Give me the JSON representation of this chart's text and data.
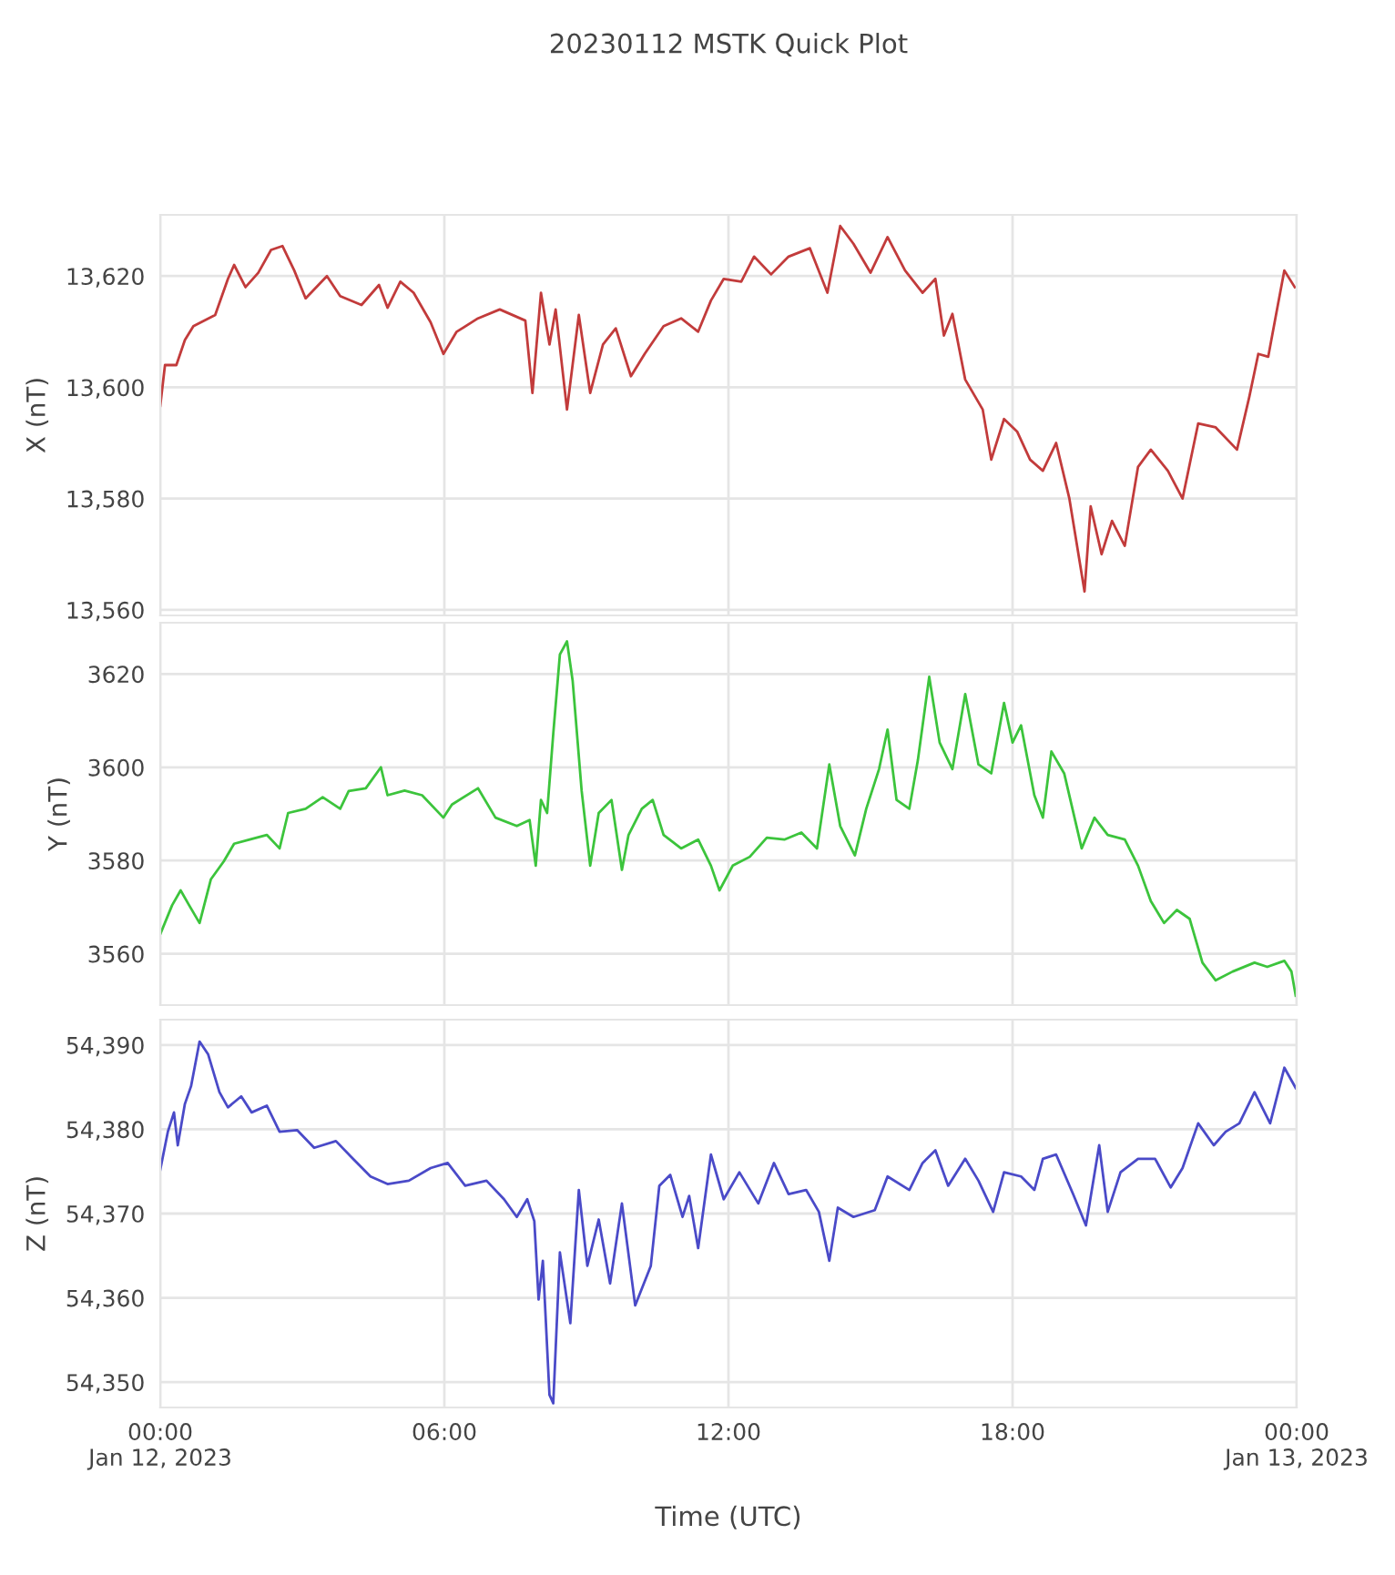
{
  "chart_data": [
    {
      "type": "line",
      "title": "20230112 MSTK Quick Plot",
      "ylabel": "X (nT)",
      "grid": true,
      "tick_labels": "y",
      "xlim": [
        0,
        24
      ],
      "xticks": [
        0,
        6,
        12,
        18,
        24
      ],
      "ylim": [
        13559,
        13631
      ],
      "yticks": [
        {
          "value": 13560,
          "label": "13,560"
        },
        {
          "value": 13580,
          "label": "13,580"
        },
        {
          "value": 13600,
          "label": "13,600"
        },
        {
          "value": 13620,
          "label": "13,620"
        }
      ],
      "x": [
        0,
        0.1,
        0.34,
        0.52,
        0.7,
        1.16,
        1.43,
        1.56,
        1.8,
        2.07,
        2.34,
        2.58,
        2.83,
        3.07,
        3.52,
        3.8,
        4.25,
        4.62,
        4.8,
        5.07,
        5.35,
        5.71,
        5.98,
        6.26,
        6.71,
        7.17,
        7.71,
        7.86,
        8.04,
        8.22,
        8.35,
        8.59,
        8.84,
        9.08,
        9.35,
        9.62,
        9.94,
        10.23,
        10.63,
        11,
        11.36,
        11.63,
        11.9,
        12.27,
        12.54,
        12.9,
        13.27,
        13.72,
        14.09,
        14.36,
        14.64,
        15,
        15.36,
        15.73,
        16.1,
        16.37,
        16.55,
        16.73,
        17,
        17.37,
        17.55,
        17.82,
        18.1,
        18.37,
        18.64,
        18.92,
        19.2,
        19.52,
        19.65,
        19.88,
        20.1,
        20.37,
        20.65,
        20.92,
        21.28,
        21.59,
        21.92,
        22.29,
        22.74,
        23,
        23.19,
        23.4,
        23.55,
        23.74,
        23.96
      ],
      "series": [
        {
          "color": "#c23b3b",
          "values": [
            13596.7,
            13604,
            13604,
            13608.5,
            13611,
            13613,
            13619.5,
            13622,
            13618,
            13620.6,
            13624.7,
            13625.4,
            13621,
            13616,
            13620,
            13616.4,
            13614.8,
            13618.4,
            13614.3,
            13619,
            13617,
            13611.7,
            13606,
            13610,
            13612.4,
            13614,
            13612,
            13599,
            13617,
            13607.7,
            13614,
            13596,
            13613,
            13599,
            13607.7,
            13610.6,
            13602,
            13606,
            13611,
            13612.4,
            13610,
            13615.6,
            13619.5,
            13619,
            13623.5,
            13620.3,
            13623.5,
            13625,
            13617,
            13629,
            13625.8,
            13620.6,
            13627,
            13621,
            13617,
            13619.5,
            13609.3,
            13613.2,
            13601.4,
            13596,
            13587,
            13594.3,
            13592,
            13587,
            13585,
            13590,
            13580,
            13563.3,
            13578.6,
            13570,
            13576,
            13571.5,
            13585.7,
            13588.8,
            13585,
            13580,
            13593.5,
            13592.8,
            13588.8,
            13598.3,
            13606,
            13605.5,
            13612.4,
            13621,
            13618
          ]
        }
      ]
    },
    {
      "type": "line",
      "ylabel": "Y (nT)",
      "grid": true,
      "tick_labels": "y",
      "xlim": [
        0,
        24
      ],
      "xticks": [
        0,
        6,
        12,
        18,
        24
      ],
      "ylim": [
        3549,
        3631
      ],
      "yticks": [
        3560,
        3580,
        3600,
        3620
      ],
      "x": [
        0,
        0.25,
        0.43,
        0.61,
        0.83,
        1.07,
        1.34,
        1.56,
        1.89,
        2.25,
        2.52,
        2.7,
        3.07,
        3.43,
        3.8,
        3.98,
        4.34,
        4.66,
        4.8,
        5.16,
        5.53,
        5.98,
        6.16,
        6.71,
        7.08,
        7.53,
        7.8,
        7.93,
        8.04,
        8.17,
        8.3,
        8.44,
        8.59,
        8.71,
        8.9,
        9.08,
        9.26,
        9.53,
        9.75,
        9.89,
        10.17,
        10.4,
        10.63,
        11,
        11.36,
        11.63,
        11.81,
        12.09,
        12.45,
        12.81,
        13.18,
        13.54,
        13.87,
        14.13,
        14.36,
        14.67,
        14.91,
        15.18,
        15.36,
        15.55,
        15.82,
        16,
        16.24,
        16.46,
        16.73,
        17,
        17.28,
        17.55,
        17.82,
        18,
        18.18,
        18.46,
        18.64,
        18.82,
        19.09,
        19.46,
        19.73,
        20.01,
        20.37,
        20.65,
        20.92,
        21.2,
        21.47,
        21.74,
        22.01,
        22.29,
        22.65,
        23.11,
        23.38,
        23.74,
        23.89,
        23.98
      ],
      "series": [
        {
          "color": "#3cc43c",
          "values": [
            3564.2,
            3570.4,
            3573.6,
            3570.4,
            3566.6,
            3576,
            3579.8,
            3583.6,
            3584.5,
            3585.5,
            3582.6,
            3590.2,
            3591.1,
            3593.6,
            3591.1,
            3594.9,
            3595.5,
            3600,
            3594,
            3595,
            3594,
            3589.2,
            3592,
            3595.5,
            3589.2,
            3587.4,
            3588.7,
            3578.9,
            3593,
            3590.2,
            3607.2,
            3624.2,
            3627,
            3618.5,
            3594.9,
            3578.9,
            3590.2,
            3593,
            3578,
            3585.5,
            3591.1,
            3593,
            3585.5,
            3582.6,
            3584.5,
            3578.9,
            3573.6,
            3578.9,
            3580.8,
            3584.9,
            3584.5,
            3586,
            3582.6,
            3600.6,
            3587.4,
            3581.1,
            3591.1,
            3599.6,
            3608.1,
            3593,
            3591.1,
            3601.5,
            3619.4,
            3605.3,
            3599.6,
            3615.7,
            3600.6,
            3598.7,
            3613.8,
            3605.3,
            3609,
            3594,
            3589.2,
            3603.4,
            3598.7,
            3582.6,
            3589.2,
            3585.5,
            3584.5,
            3578.9,
            3571.3,
            3566.6,
            3569.4,
            3567.5,
            3558.1,
            3554.3,
            3556.2,
            3558.1,
            3557.2,
            3558.5,
            3556.2,
            3551
          ]
        }
      ]
    },
    {
      "type": "line",
      "ylabel": "Z (nT)",
      "xlabel": "Time (UTC)",
      "grid": true,
      "xlim": [
        0,
        24
      ],
      "xticks": [
        {
          "value": 0,
          "label": "00:00\nJan 12, 2023"
        },
        {
          "value": 6,
          "label": "06:00"
        },
        {
          "value": 12,
          "label": "12:00"
        },
        {
          "value": 18,
          "label": "18:00"
        },
        {
          "value": 24,
          "label": "00:00\nJan 13, 2023"
        }
      ],
      "ylim": [
        54347,
        54393
      ],
      "yticks": [
        {
          "value": 54350,
          "label": "54,350"
        },
        {
          "value": 54360,
          "label": "54,360"
        },
        {
          "value": 54370,
          "label": "54,370"
        },
        {
          "value": 54380,
          "label": "54,380"
        },
        {
          "value": 54390,
          "label": "54,390"
        }
      ],
      "x": [
        0,
        0.16,
        0.29,
        0.37,
        0.52,
        0.65,
        0.83,
        1.01,
        1.25,
        1.43,
        1.71,
        1.93,
        2.25,
        2.52,
        2.89,
        3.25,
        3.71,
        4.07,
        4.44,
        4.8,
        5.25,
        5.71,
        6.07,
        6.44,
        6.89,
        7.26,
        7.53,
        7.75,
        7.9,
        7.99,
        8.08,
        8.22,
        8.3,
        8.44,
        8.66,
        8.84,
        9.02,
        9.26,
        9.5,
        9.75,
        10.03,
        10.36,
        10.54,
        10.77,
        11.03,
        11.17,
        11.36,
        11.63,
        11.9,
        12.23,
        12.63,
        12.96,
        13.27,
        13.64,
        13.91,
        14.13,
        14.31,
        14.64,
        15.09,
        15.36,
        15.82,
        16.1,
        16.37,
        16.64,
        17,
        17.28,
        17.59,
        17.82,
        18.18,
        18.46,
        18.64,
        18.92,
        19.28,
        19.55,
        19.83,
        20.01,
        20.28,
        20.65,
        21.01,
        21.34,
        21.59,
        21.92,
        22.25,
        22.5,
        22.79,
        23.11,
        23.44,
        23.74,
        23.98
      ],
      "series": [
        {
          "color": "#4a4ac8",
          "values": [
            54375.2,
            54379.7,
            54382,
            54378.1,
            54383,
            54385.1,
            54390.4,
            54388.9,
            54384.4,
            54382.6,
            54383.9,
            54382,
            54382.8,
            54379.7,
            54379.9,
            54377.8,
            54378.6,
            54376.5,
            54374.4,
            54373.5,
            54373.9,
            54375.4,
            54376,
            54373.3,
            54373.9,
            54371.7,
            54369.6,
            54371.7,
            54369.1,
            54359.8,
            54364.4,
            54348.5,
            54347.5,
            54365.4,
            54357,
            54372.8,
            54363.8,
            54369.3,
            54361.7,
            54371.2,
            54359.1,
            54363.8,
            54373.3,
            54374.6,
            54369.6,
            54372.1,
            54365.9,
            54377,
            54371.7,
            54374.9,
            54371.2,
            54376,
            54372.3,
            54372.8,
            54370.2,
            54364.4,
            54370.7,
            54369.6,
            54370.4,
            54374.4,
            54372.8,
            54376,
            54377.5,
            54373.3,
            54376.5,
            54373.9,
            54370.2,
            54374.9,
            54374.4,
            54372.8,
            54376.5,
            54377,
            54372.3,
            54368.6,
            54378.1,
            54370.2,
            54374.9,
            54376.5,
            54376.5,
            54373.1,
            54375.4,
            54380.7,
            54378.1,
            54379.7,
            54380.7,
            54384.4,
            54380.7,
            54387.3,
            54384.9
          ]
        }
      ]
    }
  ]
}
